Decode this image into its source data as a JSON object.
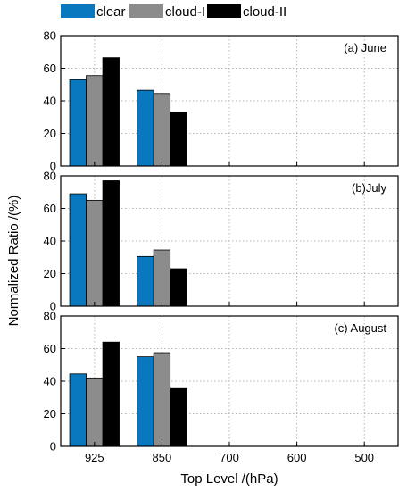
{
  "chart_data": {
    "type": "bar",
    "xlabel": "Top Level /(hPa)",
    "ylabel": "Normalized Ratio /(%)",
    "categories": [
      "925",
      "850",
      "700",
      "600",
      "500"
    ],
    "ylim": [
      0,
      80
    ],
    "yticks": [
      0,
      20,
      40,
      60,
      80
    ],
    "grid": true,
    "legend_position": "top",
    "series_names": [
      "clear",
      "cloud-I",
      "cloud-II"
    ],
    "colors": {
      "clear": "#0a78be",
      "cloud-I": "#8c8c8c",
      "cloud-II": "#000000"
    },
    "panels": [
      {
        "label": "(a) June",
        "series": [
          {
            "name": "clear",
            "values": [
              53,
              46.5,
              0,
              0,
              0
            ]
          },
          {
            "name": "cloud-I",
            "values": [
              55.5,
              44.5,
              0,
              0,
              0
            ]
          },
          {
            "name": "cloud-II",
            "values": [
              66.5,
              33,
              0,
              0,
              0
            ]
          }
        ]
      },
      {
        "label": "(b)July",
        "series": [
          {
            "name": "clear",
            "values": [
              69,
              30.5,
              0,
              0,
              0
            ]
          },
          {
            "name": "cloud-I",
            "values": [
              65,
              34.5,
              0,
              0,
              0
            ]
          },
          {
            "name": "cloud-II",
            "values": [
              77,
              23,
              0,
              0,
              0
            ]
          }
        ]
      },
      {
        "label": "(c) August",
        "series": [
          {
            "name": "clear",
            "values": [
              44.5,
              55,
              0,
              0,
              0
            ]
          },
          {
            "name": "cloud-I",
            "values": [
              42,
              57.5,
              0,
              0,
              0
            ]
          },
          {
            "name": "cloud-II",
            "values": [
              64,
              35.5,
              0,
              0,
              0
            ]
          }
        ]
      }
    ]
  }
}
